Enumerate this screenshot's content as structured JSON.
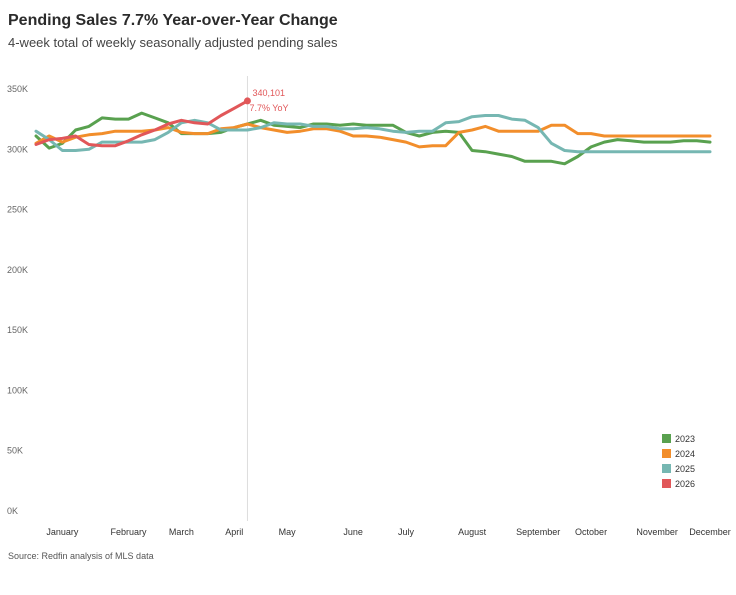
{
  "header": {
    "title": "Pending Sales 7.7% Year-over-Year Change",
    "subtitle": "4-week total of weekly seasonally adjusted pending sales"
  },
  "footer": {
    "source": "Source: Redfin analysis of MLS data"
  },
  "colors": {
    "2023": "#59A14F",
    "2024": "#F28E2B",
    "2025": "#76B7B2",
    "2026": "#E15759",
    "reference_line": "#dddddd"
  },
  "chart_data": {
    "type": "line",
    "title": "Pending Sales 7.7% Year-over-Year Change",
    "subtitle": "4-week total of weekly seasonally adjusted pending sales",
    "xlabel": "",
    "ylabel": "",
    "x_unit": "week of year",
    "xlim": [
      1,
      52
    ],
    "ylim": [
      0,
      350000
    ],
    "y_ticks": [
      0,
      50000,
      100000,
      150000,
      200000,
      250000,
      300000,
      350000
    ],
    "y_tick_labels": [
      "0K",
      "50K",
      "100K",
      "150K",
      "200K",
      "250K",
      "300K",
      "350K"
    ],
    "x_tick_labels": [
      "January",
      "February",
      "March",
      "April",
      "May",
      "June",
      "July",
      "August",
      "September",
      "October",
      "November",
      "December"
    ],
    "x_tick_weeks": [
      3,
      8,
      12,
      16,
      20,
      25,
      29,
      34,
      39,
      43,
      48,
      52
    ],
    "grid": false,
    "legend_position": "bottom-right",
    "annotation": {
      "series": "2026",
      "week": 17,
      "value_label": "340,101",
      "change_label": "7.7% YoY"
    },
    "series": [
      {
        "name": "2023",
        "x": [
          1,
          2,
          3,
          4,
          5,
          6,
          7,
          8,
          9,
          10,
          11,
          12,
          13,
          14,
          15,
          16,
          17,
          18,
          19,
          20,
          21,
          22,
          23,
          24,
          25,
          26,
          27,
          28,
          29,
          30,
          31,
          32,
          33,
          34,
          35,
          36,
          37,
          38,
          39,
          40,
          41,
          42,
          43,
          44,
          45,
          46,
          47,
          48,
          49,
          50,
          51,
          52
        ],
        "values": [
          311000,
          301000,
          305000,
          316000,
          319000,
          326000,
          325000,
          325000,
          330000,
          326000,
          322000,
          313000,
          313000,
          313000,
          314000,
          318000,
          321000,
          324000,
          320000,
          319000,
          318000,
          321000,
          321000,
          320000,
          321000,
          320000,
          320000,
          320000,
          314000,
          311000,
          314000,
          315000,
          314000,
          299000,
          298000,
          296000,
          294000,
          290000,
          290000,
          290000,
          288000,
          294000,
          302000,
          306000,
          308000,
          307000,
          306000,
          306000,
          306000,
          307000,
          307000,
          306000
        ]
      },
      {
        "name": "2024",
        "x": [
          1,
          2,
          3,
          4,
          5,
          6,
          7,
          8,
          9,
          10,
          11,
          12,
          13,
          14,
          15,
          16,
          17,
          18,
          19,
          20,
          21,
          22,
          23,
          24,
          25,
          26,
          27,
          28,
          29,
          30,
          31,
          32,
          33,
          34,
          35,
          36,
          37,
          38,
          39,
          40,
          41,
          42,
          43,
          44,
          45,
          46,
          47,
          48,
          49,
          50,
          51,
          52
        ],
        "values": [
          305000,
          311000,
          306000,
          310000,
          312000,
          313000,
          315000,
          315000,
          315000,
          316000,
          318000,
          314000,
          313000,
          313000,
          317000,
          318000,
          321000,
          318000,
          316000,
          314000,
          315000,
          317000,
          317000,
          315000,
          311000,
          311000,
          310000,
          308000,
          306000,
          302000,
          303000,
          303000,
          314000,
          316000,
          319000,
          315000,
          315000,
          315000,
          315000,
          320000,
          320000,
          313000,
          313000,
          311000,
          311000,
          311000,
          311000,
          311000,
          311000,
          311000,
          311000,
          311000
        ]
      },
      {
        "name": "2025",
        "x": [
          1,
          2,
          3,
          4,
          5,
          6,
          7,
          8,
          9,
          10,
          11,
          12,
          13,
          14,
          15,
          16,
          17,
          18,
          19,
          20,
          21,
          22,
          23,
          24,
          25,
          26,
          27,
          28,
          29,
          30,
          31,
          32,
          33,
          34,
          35,
          36,
          37,
          38,
          39,
          40,
          41,
          42,
          43,
          44,
          45,
          46,
          47,
          48,
          49,
          50,
          51,
          52
        ],
        "values": [
          315000,
          308000,
          299000,
          299000,
          300000,
          306000,
          306000,
          306000,
          306000,
          308000,
          314000,
          322000,
          324000,
          322000,
          316000,
          316000,
          316000,
          318000,
          322000,
          321000,
          321000,
          319000,
          319000,
          317000,
          317000,
          318000,
          317000,
          315000,
          314000,
          315000,
          315000,
          322000,
          323000,
          327000,
          328000,
          328000,
          325000,
          324000,
          318000,
          305000,
          299000,
          298000,
          298000,
          298000,
          298000,
          298000,
          298000,
          298000,
          298000,
          298000,
          298000,
          298000
        ]
      },
      {
        "name": "2026",
        "x": [
          1,
          2,
          3,
          4,
          5,
          6,
          7,
          8,
          9,
          10,
          11,
          12,
          13,
          14,
          15,
          16,
          17
        ],
        "values": [
          304000,
          308000,
          309000,
          311000,
          304000,
          303000,
          303000,
          307000,
          312000,
          316000,
          321000,
          324000,
          322000,
          321000,
          328000,
          334000,
          340101
        ]
      }
    ]
  }
}
